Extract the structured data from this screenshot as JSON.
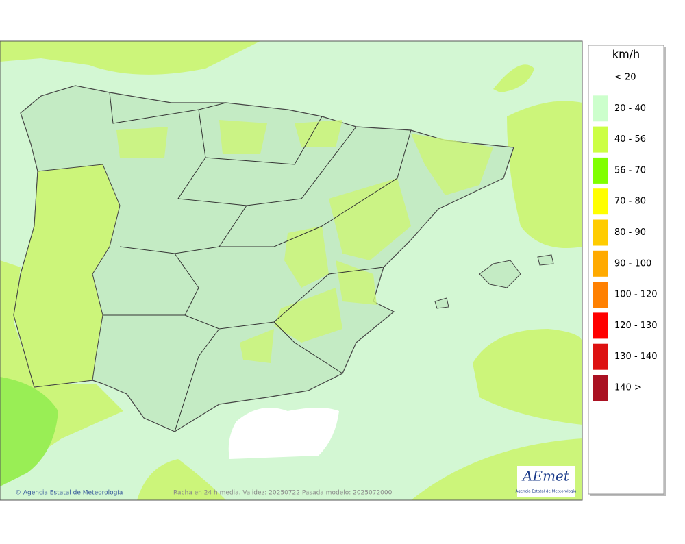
{
  "map": {
    "footer": {
      "credit": "© Agencia Estatal de Meteorología",
      "caption": "Racha en 24 h media. Validez: 20250722 Pasada modelo: 2025072000"
    },
    "logo": {
      "name": "AEmet",
      "subtitle": "Agencia Estatal de Meteorología"
    },
    "legend": {
      "title": "km/h",
      "items": [
        {
          "label": "< 20"
        },
        {
          "label": "20 - 40",
          "color": "#ccffcc"
        },
        {
          "label": "40 - 56",
          "color": "#ccff44"
        },
        {
          "label": "56 - 70",
          "color": "#80ff00"
        },
        {
          "label": "70 - 80",
          "color": "#ffff00"
        },
        {
          "label": "80 - 90",
          "color": "#ffcc00"
        },
        {
          "label": "90 - 100",
          "color": "#ffaa00"
        },
        {
          "label": "100 - 120",
          "color": "#ff8000"
        },
        {
          "label": "120 - 130",
          "color": "#ff0000"
        },
        {
          "label": "130 - 140",
          "color": "#dd1111"
        },
        {
          "label": "140 >",
          "color": "#aa1122"
        }
      ]
    }
  }
}
